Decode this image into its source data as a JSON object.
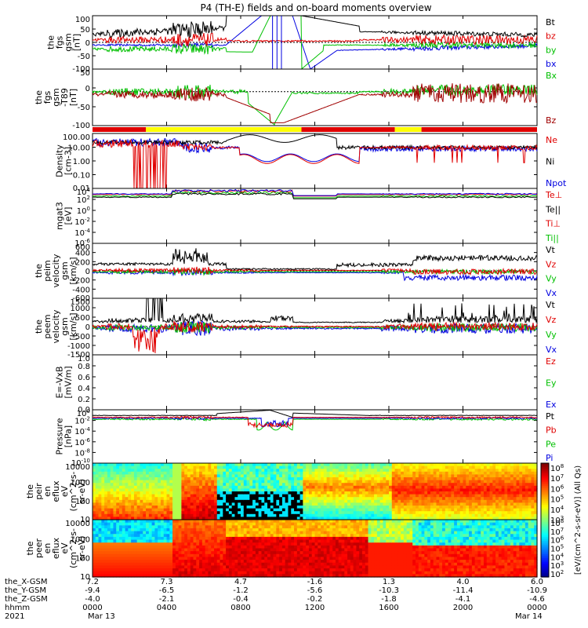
{
  "title": "P4 (TH-E) fields and on-board moments overview",
  "colors": {
    "black": "#000000",
    "red": "#e00000",
    "green": "#00c000",
    "blue": "#0000e0",
    "darkred": "#a00000",
    "yellow": "#ffff00",
    "barred": "#e00000"
  },
  "chart_data": [
    {
      "type": "line",
      "name_panel": "fgs_gsm",
      "ylabel": [
        "the",
        "fgs",
        "gsm",
        "[nT]"
      ],
      "ylim": [
        -100,
        100
      ],
      "yticks": [
        "100",
        "50",
        "0",
        "-50",
        "-100"
      ],
      "legend": [
        {
          "name": "Bt",
          "color": "black"
        },
        {
          "name": "bz",
          "color": "red"
        },
        {
          "name": "by",
          "color": "green"
        },
        {
          "name": "bx",
          "color": "blue"
        }
      ]
    },
    {
      "type": "line",
      "name_panel": "fgs_gsm_t89",
      "ylabel": [
        "the",
        "fgs",
        "gsm",
        "-T89",
        "[nT]"
      ],
      "ylim": [
        -120,
        80
      ],
      "yticks": [
        "50",
        "0",
        "-50",
        "-100"
      ],
      "legend": [
        {
          "name": "Bx",
          "color": "green"
        },
        {
          "name": "Bz",
          "color": "darkred"
        }
      ]
    },
    {
      "type": "bar",
      "name_panel": "region_bar",
      "segments": [
        {
          "from": 0,
          "to": 0.12,
          "color": "barred"
        },
        {
          "from": 0.12,
          "to": 0.47,
          "color": "yellow"
        },
        {
          "from": 0.47,
          "to": 0.68,
          "color": "barred"
        },
        {
          "from": 0.68,
          "to": 0.74,
          "color": "yellow"
        },
        {
          "from": 0.74,
          "to": 1.0,
          "color": "barred"
        }
      ]
    },
    {
      "type": "line",
      "name_panel": "density",
      "ylabel": [
        "Density",
        "[cm-3]"
      ],
      "yscale": "log",
      "ylim": [
        0.01,
        200
      ],
      "yticks": [
        "100.00",
        "10.00",
        "1.00",
        "0.10",
        "0.01"
      ],
      "legend": [
        {
          "name": "Ne",
          "color": "red"
        },
        {
          "name": "Ni",
          "color": "black"
        },
        {
          "name": "Npot",
          "color": "blue"
        }
      ]
    },
    {
      "type": "line",
      "name_panel": "temperature",
      "ylabel": [
        "mgat3",
        "[eV]"
      ],
      "yscale": "log",
      "ylim": [
        "10^-6",
        "10^4"
      ],
      "yticks": [
        "10^4",
        "10^2",
        "10^0",
        "10^-2",
        "10^-4",
        "10^-6"
      ],
      "legend": [
        {
          "name": "Te⊥",
          "color": "red"
        },
        {
          "name": "Te||",
          "color": "black"
        },
        {
          "name": "Ti⊥",
          "color": "red"
        },
        {
          "name": "Ti||",
          "color": "green"
        }
      ]
    },
    {
      "type": "line",
      "name_panel": "peim_velocity",
      "ylabel": [
        "the",
        "peim",
        "velocity",
        "gsm",
        "[km/s]"
      ],
      "ylim": [
        -600,
        600
      ],
      "yticks": [
        "600",
        "400",
        "200",
        "0",
        "-200",
        "-400",
        "-600"
      ],
      "legend": [
        {
          "name": "Vt",
          "color": "black"
        },
        {
          "name": "Vz",
          "color": "red"
        },
        {
          "name": "Vy",
          "color": "green"
        },
        {
          "name": "Vx",
          "color": "blue"
        }
      ]
    },
    {
      "type": "line",
      "name_panel": "peem_velocity",
      "ylabel": [
        "the",
        "peem",
        "velocity",
        "gsm",
        "[km/s]"
      ],
      "ylim": [
        -1500,
        1500
      ],
      "yticks": [
        "1500",
        "1000",
        "500",
        "0",
        "-500",
        "-1000",
        "-1500"
      ],
      "legend": [
        {
          "name": "Vt",
          "color": "black"
        },
        {
          "name": "Vz",
          "color": "red"
        },
        {
          "name": "Vy",
          "color": "green"
        },
        {
          "name": "Vx",
          "color": "blue"
        }
      ]
    },
    {
      "type": "line",
      "name_panel": "efield",
      "ylabel": [
        "E=-VxB",
        "[mV/m]"
      ],
      "ylim": [
        0.0,
        1.0
      ],
      "yticks": [
        "1.0",
        "0.8",
        "0.6",
        "0.4",
        "0.2",
        "0.0"
      ],
      "legend": [
        {
          "name": "Ez",
          "color": "red"
        },
        {
          "name": "Ey",
          "color": "green"
        },
        {
          "name": "Ex",
          "color": "blue"
        }
      ]
    },
    {
      "type": "line",
      "name_panel": "pressure",
      "ylabel": [
        "Pressure",
        "[nPa]"
      ],
      "yscale": "log",
      "ylim": [
        "10^-10",
        "10^2"
      ],
      "yticks": [
        "10^0",
        "10^-2",
        "10^-4",
        "10^-6",
        "10^-8",
        "10^-10"
      ],
      "legend": [
        {
          "name": "Pt",
          "color": "black"
        },
        {
          "name": "Pb",
          "color": "red"
        },
        {
          "name": "Pe",
          "color": "green"
        },
        {
          "name": "Pi",
          "color": "blue"
        }
      ]
    },
    {
      "type": "heatmap",
      "name_panel": "peir_spectrogram",
      "ylabel": [
        "the",
        "peir",
        "en",
        "eflux",
        "eV",
        "(cm^2-s-",
        "sr-eV)"
      ],
      "yscale": "log",
      "yticks": [
        "10000",
        "1000",
        "100",
        "10"
      ]
    },
    {
      "type": "heatmap",
      "name_panel": "peer_spectrogram",
      "ylabel": [
        "the",
        "peer",
        "en",
        "eflux",
        "eV",
        "(cm^2-s-",
        "sr-eV)"
      ],
      "yscale": "log",
      "yticks": [
        "10000",
        "1000",
        "100",
        "10"
      ]
    }
  ],
  "colorbar": {
    "label": "[eV/(cm^2-s-sr-eV)] (All Qs)",
    "ticks1": [
      "10^8",
      "10^7",
      "10^6",
      "10^5",
      "10^4",
      "10^3"
    ],
    "ticks2": [
      "10^8",
      "10^7",
      "10^6",
      "10^5",
      "10^4",
      "10^3",
      "10^2"
    ]
  },
  "xaxis": {
    "row_labels": [
      "the_X-GSM",
      "the_Y-GSM",
      "the_Z-GSM",
      "hhmm",
      "2021"
    ],
    "columns": [
      {
        "x": "7.2",
        "y": "-9.4",
        "z": "-4.0",
        "hhmm": "0000",
        "date": "Mar 13"
      },
      {
        "x": "7.3",
        "y": "-6.5",
        "z": "-2.1",
        "hhmm": "0400",
        "date": ""
      },
      {
        "x": "4.7",
        "y": "-1.2",
        "z": "-0.4",
        "hhmm": "0800",
        "date": ""
      },
      {
        "x": "-1.6",
        "y": "-5.6",
        "z": "-0.2",
        "hhmm": "1200",
        "date": ""
      },
      {
        "x": "1.3",
        "y": "-10.3",
        "z": "-1.8",
        "hhmm": "1600",
        "date": ""
      },
      {
        "x": "4.0",
        "y": "-11.4",
        "z": "-4.1",
        "hhmm": "2000",
        "date": ""
      },
      {
        "x": "6.0",
        "y": "-10.9",
        "z": "-4.6",
        "hhmm": "0000",
        "date": "Mar 14"
      }
    ]
  }
}
